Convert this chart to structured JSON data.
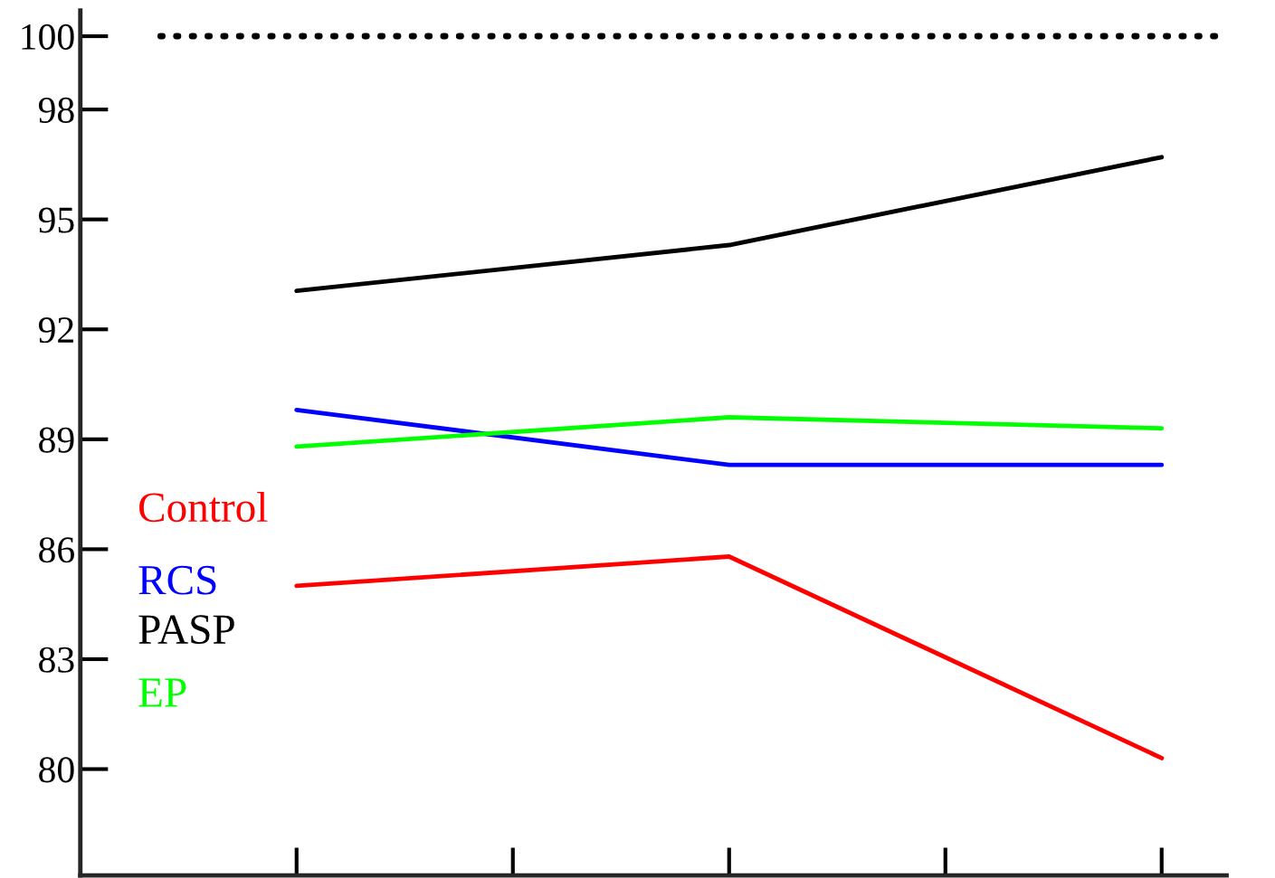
{
  "chart_data": {
    "type": "line",
    "categories": [
      null,
      null,
      null,
      null,
      null
    ],
    "series": [
      {
        "name": "Control",
        "color": "#ff0000",
        "values": [
          85.0,
          null,
          85.8,
          null,
          80.3
        ]
      },
      {
        "name": "RCS",
        "color": "#0000ff",
        "values": [
          89.8,
          null,
          88.3,
          null,
          88.3
        ]
      },
      {
        "name": "PASP",
        "color": "#000000",
        "values": [
          93.05,
          null,
          94.3,
          null,
          96.7
        ]
      },
      {
        "name": "EP",
        "color": "#00ff00",
        "values": [
          88.8,
          null,
          89.6,
          null,
          89.3
        ]
      }
    ],
    "ylim": [
      77.1,
      100.7
    ],
    "yticks": [
      80,
      83,
      86,
      89,
      92,
      95,
      98,
      100
    ],
    "ref_lines": [
      {
        "axis": "y",
        "value": 100,
        "color": "#000000",
        "line_style": "dotted"
      }
    ],
    "legend": "left",
    "grid": false,
    "line_style": "solid",
    "marker": "none"
  }
}
